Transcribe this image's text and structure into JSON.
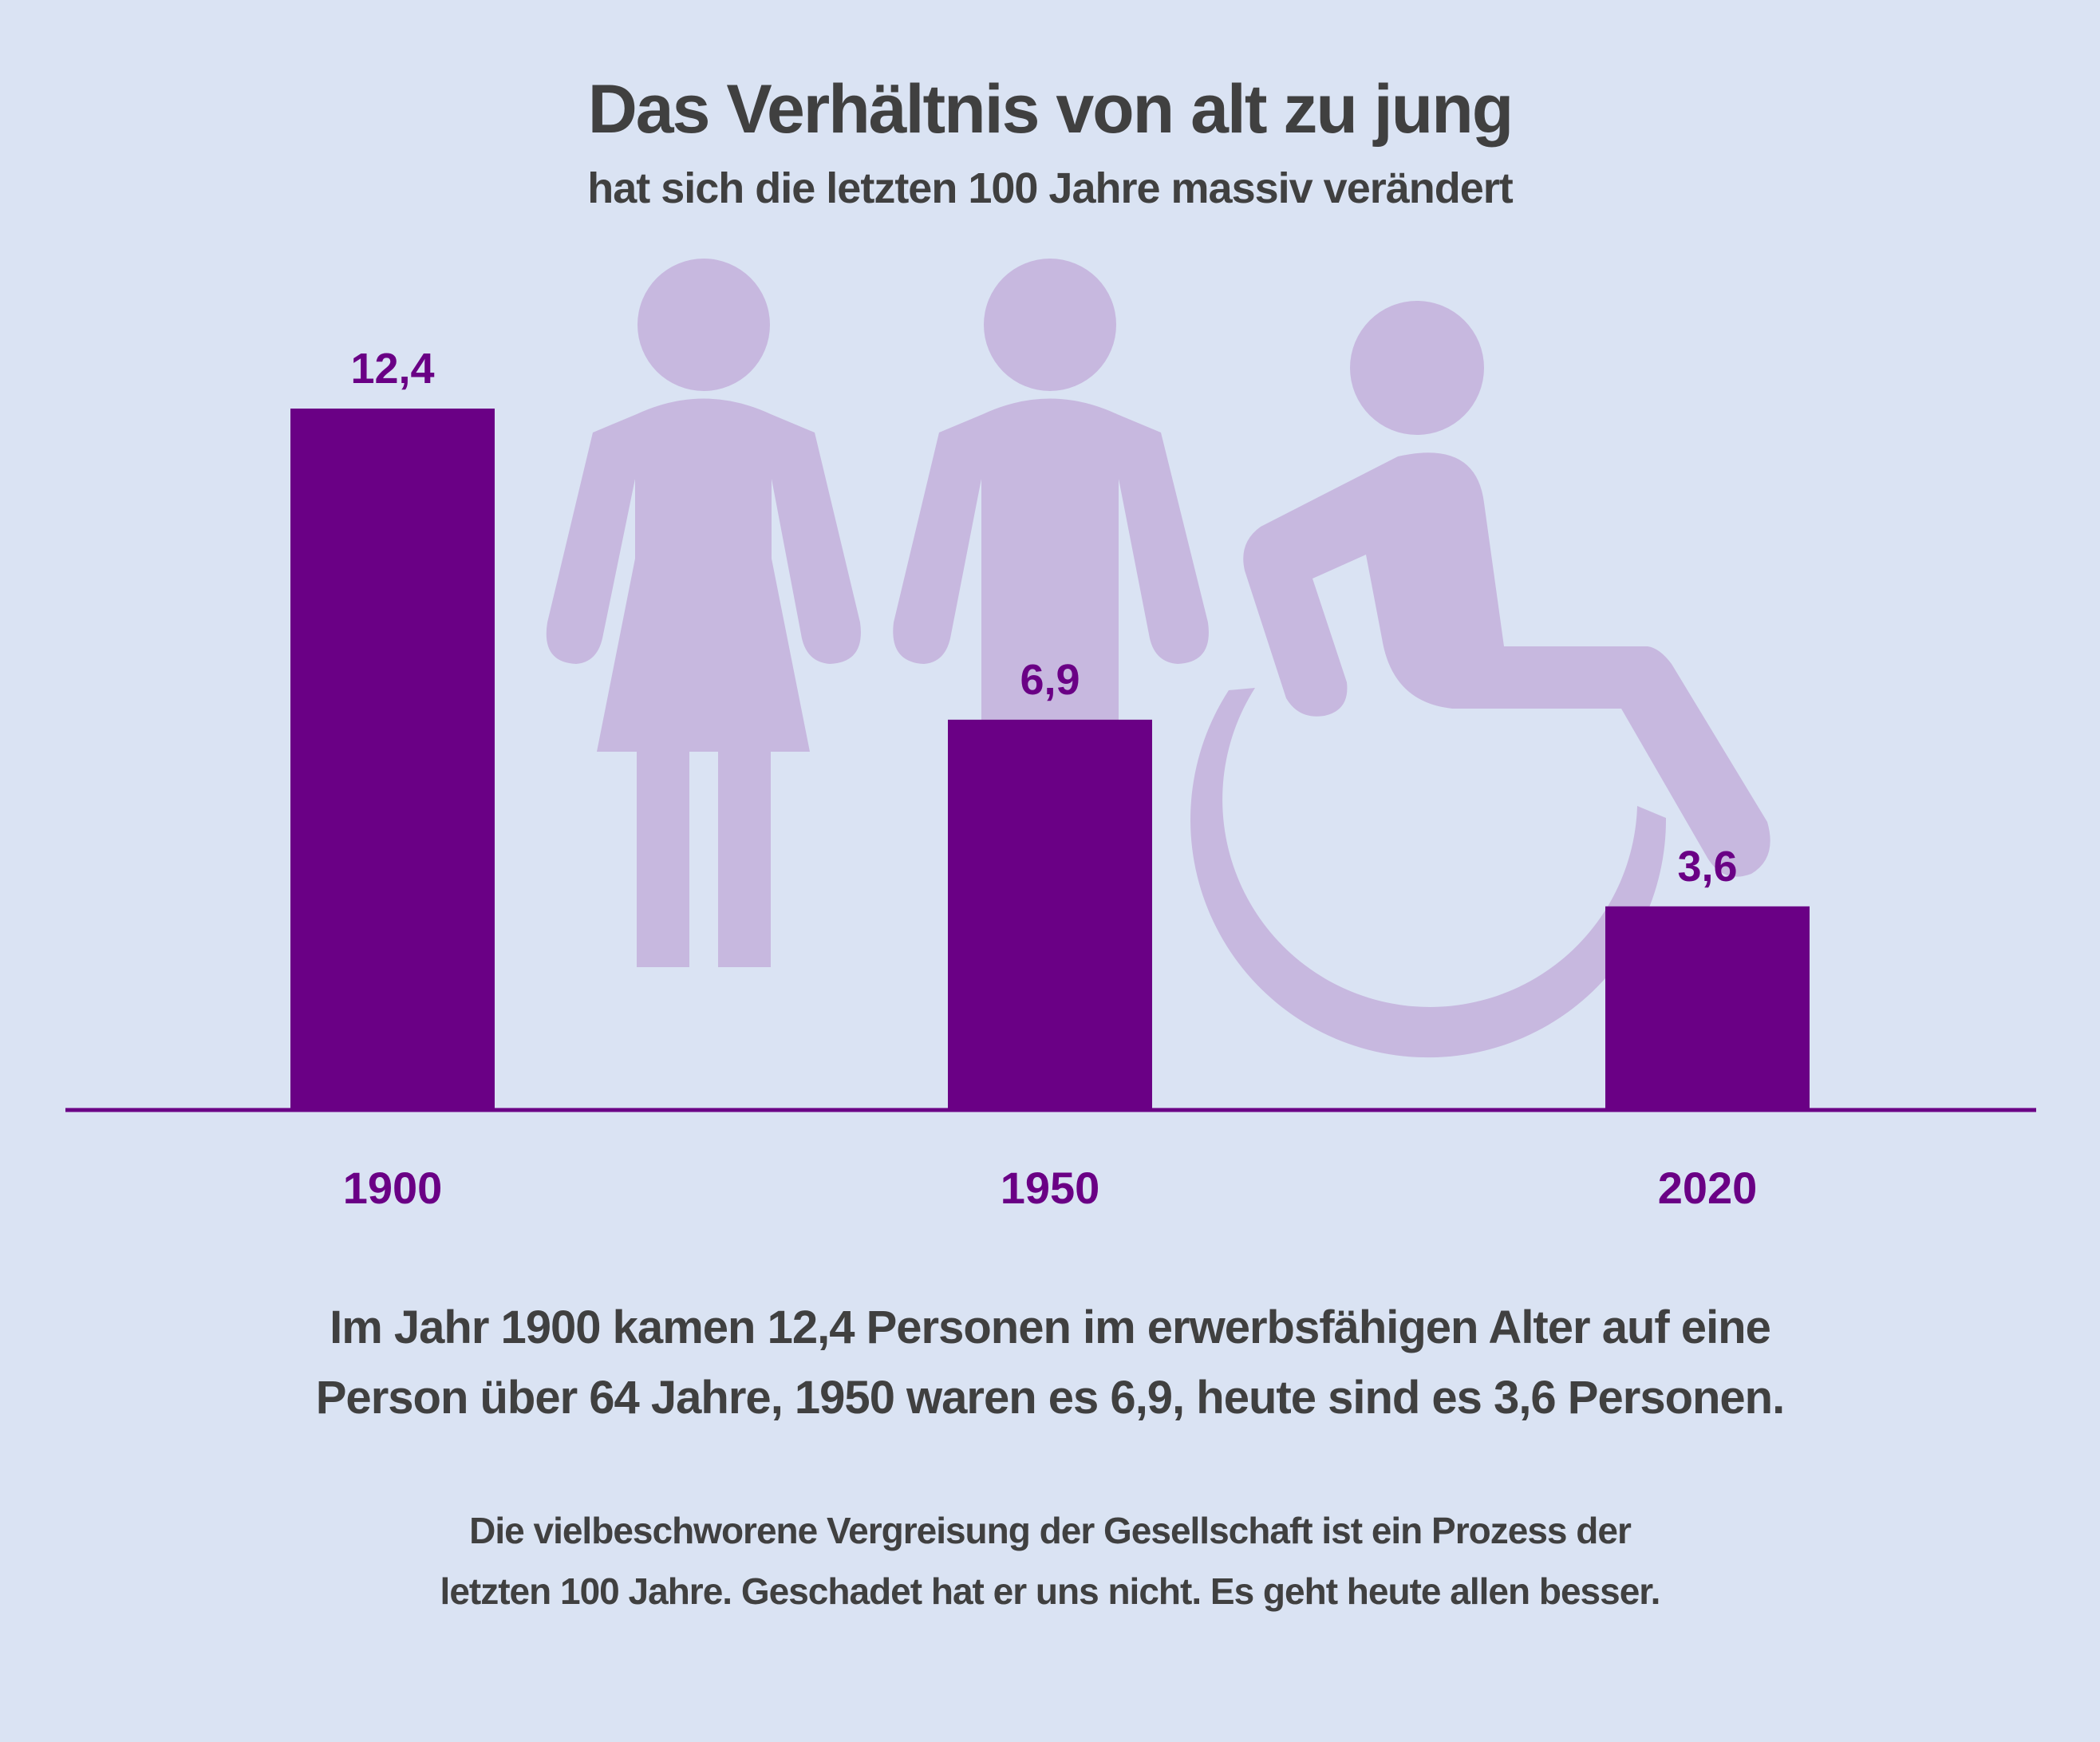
{
  "title": "Das Verhältnis von alt zu jung",
  "subtitle": "hat sich die letzten 100 Jahre massiv verändert",
  "colors": {
    "background": "#dae3f3",
    "bar": "#6a0085",
    "icon": "#c7b8df",
    "text": "#404040"
  },
  "icons": [
    "woman-icon",
    "man-icon",
    "wheelchair-icon"
  ],
  "chart_data": {
    "type": "bar",
    "categories": [
      "1900",
      "1950",
      "2020"
    ],
    "values": [
      12.4,
      6.9,
      3.6
    ],
    "value_labels": [
      "12,4",
      "6,9",
      "3,6"
    ],
    "ylim": [
      0,
      12.4
    ],
    "grid": false,
    "legend": "none"
  },
  "caption": {
    "main": [
      "Im Jahr 1900 kamen 12,4 Personen im erwerbsfähigen Alter auf eine",
      "Person über 64 Jahre, 1950 waren es 6,9, heute sind es 3,6 Personen."
    ],
    "sub": [
      "Die vielbeschworene Vergreisung der Gesellschaft ist ein Prozess der",
      "letzten 100 Jahre. Geschadet hat er uns nicht. Es geht heute allen besser."
    ]
  }
}
